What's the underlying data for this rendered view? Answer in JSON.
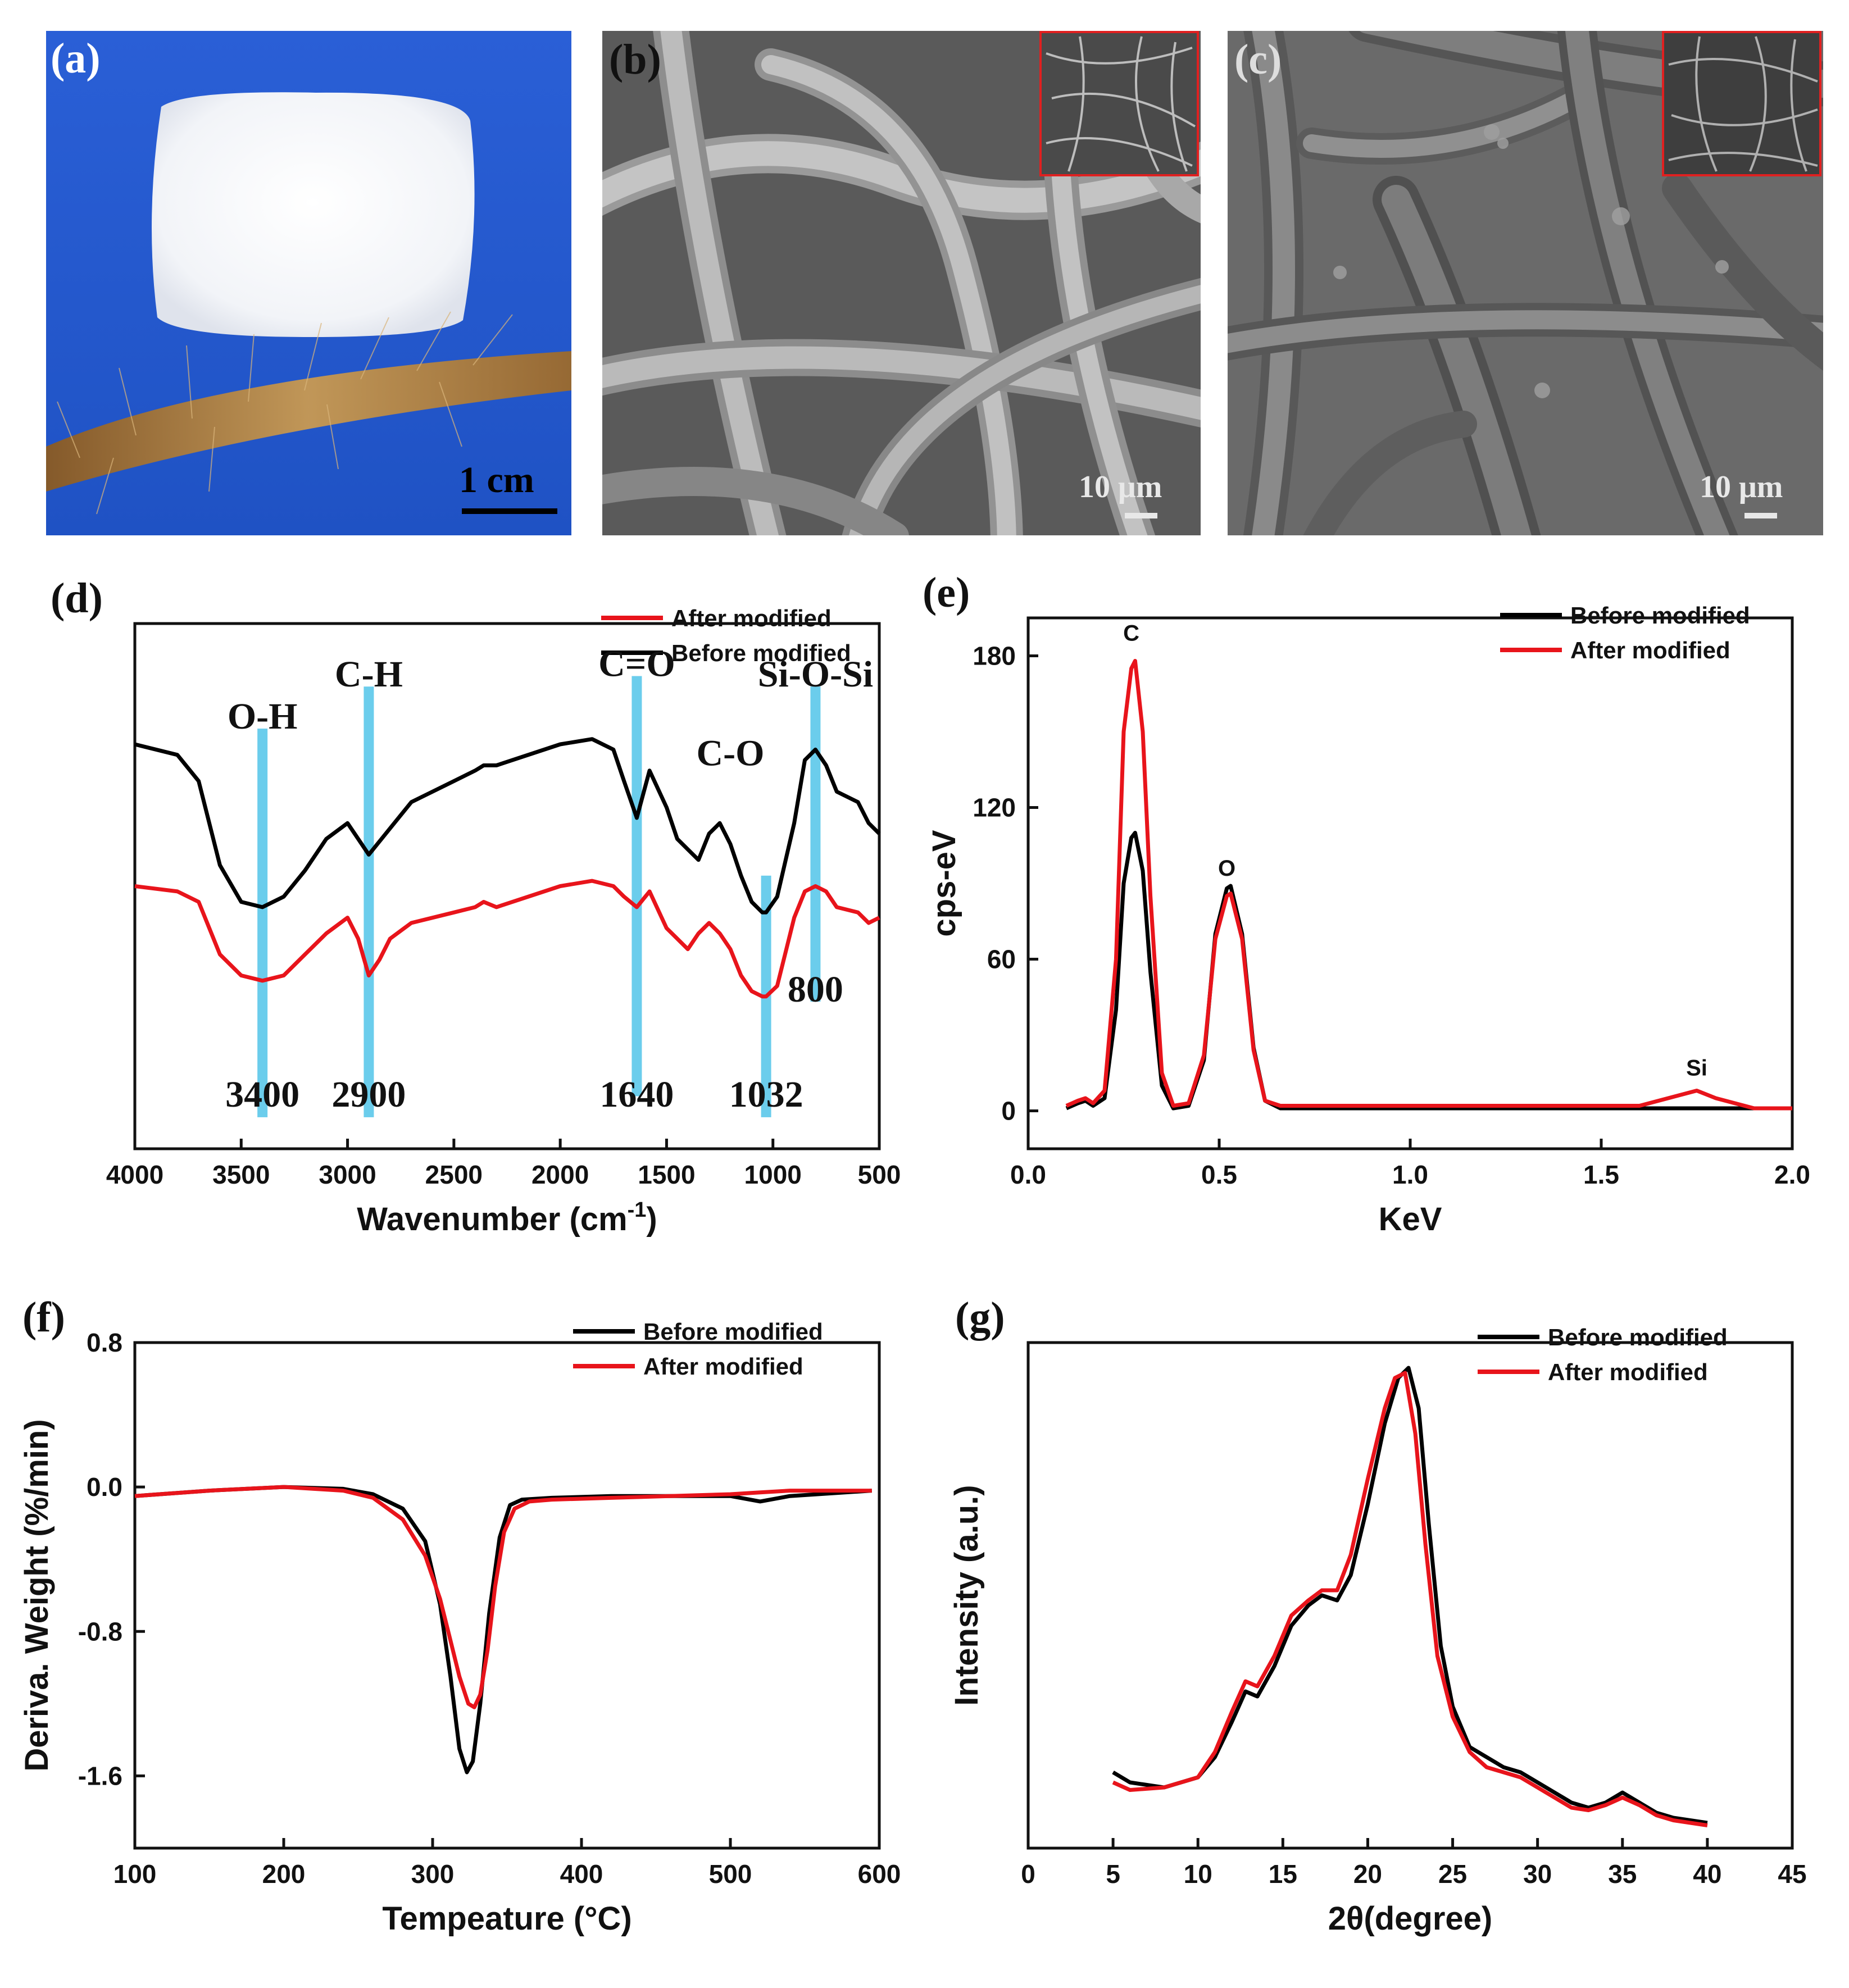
{
  "panels": {
    "a": {
      "label": "(a)",
      "scale_text": "1 cm"
    },
    "b": {
      "label": "(b)",
      "scale_text": "10 μm"
    },
    "c": {
      "label": "(c)",
      "scale_text": "10 μm"
    }
  },
  "colors": {
    "before": "#000000",
    "after": "#e8141b",
    "band": "#5bc8ea",
    "sky": "#2f5fd0"
  },
  "chart_data": [
    {
      "panel": "(d)",
      "type": "line",
      "xlabel": "Wavenumber (cm",
      "xlabel_sup": "-1",
      "xlabel_tail": ")",
      "xlim": [
        4000,
        500
      ],
      "xticks": [
        4000,
        3500,
        3000,
        2500,
        2000,
        1500,
        1000,
        500
      ],
      "xtick_labels": [
        "4000",
        "3500",
        "3000",
        "2500",
        "2000",
        "1500",
        "1000",
        "500"
      ],
      "ylim": [
        0,
        1
      ],
      "legend": [
        "After modified",
        "Before modified"
      ],
      "series": [
        {
          "name": "Before modified",
          "color": "#000000",
          "x": [
            4000,
            3800,
            3700,
            3600,
            3500,
            3400,
            3300,
            3200,
            3100,
            3000,
            2900,
            2800,
            2700,
            2500,
            2400,
            2360,
            2300,
            2000,
            1850,
            1750,
            1700,
            1640,
            1580,
            1500,
            1450,
            1400,
            1350,
            1300,
            1250,
            1200,
            1150,
            1100,
            1050,
            1032,
            980,
            900,
            850,
            800,
            750,
            700,
            600,
            550,
            500
          ],
          "y": [
            0.77,
            0.75,
            0.7,
            0.54,
            0.47,
            0.46,
            0.48,
            0.53,
            0.59,
            0.62,
            0.56,
            0.61,
            0.66,
            0.7,
            0.72,
            0.73,
            0.73,
            0.77,
            0.78,
            0.76,
            0.7,
            0.63,
            0.72,
            0.65,
            0.59,
            0.57,
            0.55,
            0.6,
            0.62,
            0.58,
            0.52,
            0.47,
            0.45,
            0.45,
            0.48,
            0.62,
            0.74,
            0.76,
            0.73,
            0.68,
            0.66,
            0.62,
            0.6
          ]
        },
        {
          "name": "After modified",
          "color": "#e8141b",
          "x": [
            4000,
            3800,
            3700,
            3600,
            3500,
            3400,
            3300,
            3200,
            3100,
            3000,
            2950,
            2900,
            2850,
            2800,
            2700,
            2500,
            2400,
            2360,
            2300,
            2000,
            1850,
            1750,
            1700,
            1640,
            1580,
            1500,
            1450,
            1400,
            1350,
            1300,
            1250,
            1200,
            1150,
            1100,
            1050,
            1032,
            980,
            900,
            850,
            800,
            750,
            700,
            600,
            550,
            500
          ],
          "y": [
            0.5,
            0.49,
            0.47,
            0.37,
            0.33,
            0.32,
            0.33,
            0.37,
            0.41,
            0.44,
            0.4,
            0.33,
            0.36,
            0.4,
            0.43,
            0.45,
            0.46,
            0.47,
            0.46,
            0.5,
            0.51,
            0.5,
            0.48,
            0.46,
            0.49,
            0.42,
            0.4,
            0.38,
            0.41,
            0.43,
            0.41,
            0.38,
            0.33,
            0.3,
            0.29,
            0.29,
            0.31,
            0.44,
            0.49,
            0.5,
            0.49,
            0.46,
            0.45,
            0.43,
            0.44
          ]
        }
      ],
      "annotations": [
        {
          "text": "O-H",
          "x": 3400,
          "y": 0.8
        },
        {
          "text": "C-H",
          "x": 2900,
          "y": 0.88
        },
        {
          "text": "C=O",
          "x": 1640,
          "y": 0.9
        },
        {
          "text": "C-O",
          "x": 1200,
          "y": 0.73
        },
        {
          "text": "Si-O-Si",
          "x": 800,
          "y": 0.88
        },
        {
          "text": "3400",
          "x": 3400,
          "y": 0.08
        },
        {
          "text": "2900",
          "x": 2900,
          "y": 0.08
        },
        {
          "text": "1640",
          "x": 1640,
          "y": 0.08
        },
        {
          "text": "1032",
          "x": 1032,
          "y": 0.08
        },
        {
          "text": "800",
          "x": 800,
          "y": 0.28
        }
      ],
      "bands": [
        3400,
        2900,
        1640,
        1032,
        800
      ]
    },
    {
      "panel": "(e)",
      "type": "line",
      "xlabel": "KeV",
      "ylabel": "cps-eV",
      "xlim": [
        0.0,
        2.0
      ],
      "ylim": [
        -15,
        195
      ],
      "xticks": [
        0.0,
        0.5,
        1.0,
        1.5,
        2.0
      ],
      "xtick_labels": [
        "0.0",
        "0.5",
        "1.0",
        "1.5",
        "2.0"
      ],
      "yticks": [
        0,
        60,
        120,
        180
      ],
      "ytick_labels": [
        "0",
        "60",
        "120",
        "180"
      ],
      "legend": [
        "Before modified",
        "After modified"
      ],
      "series": [
        {
          "name": "Before modified",
          "color": "#000000",
          "x": [
            0.1,
            0.13,
            0.15,
            0.17,
            0.2,
            0.23,
            0.25,
            0.27,
            0.28,
            0.3,
            0.32,
            0.35,
            0.38,
            0.42,
            0.46,
            0.49,
            0.52,
            0.53,
            0.56,
            0.59,
            0.62,
            0.66,
            0.8,
            1.0,
            1.2,
            1.4,
            1.6,
            1.7,
            1.75,
            1.8,
            1.9,
            2.0
          ],
          "y": [
            1,
            3,
            4,
            2,
            5,
            40,
            90,
            108,
            110,
            95,
            55,
            10,
            1,
            2,
            20,
            70,
            88,
            89,
            70,
            25,
            4,
            1,
            1,
            1,
            1,
            1,
            1,
            1,
            1,
            1,
            1,
            1
          ]
        },
        {
          "name": "After modified",
          "color": "#e8141b",
          "x": [
            0.1,
            0.13,
            0.15,
            0.17,
            0.2,
            0.23,
            0.25,
            0.27,
            0.28,
            0.3,
            0.32,
            0.35,
            0.38,
            0.42,
            0.46,
            0.49,
            0.52,
            0.53,
            0.56,
            0.59,
            0.62,
            0.66,
            0.8,
            1.0,
            1.2,
            1.4,
            1.6,
            1.7,
            1.75,
            1.8,
            1.9,
            2.0
          ],
          "y": [
            2,
            4,
            5,
            3,
            8,
            60,
            150,
            175,
            178,
            150,
            85,
            15,
            2,
            3,
            22,
            68,
            85,
            86,
            68,
            24,
            4,
            2,
            2,
            2,
            2,
            2,
            2,
            6,
            8,
            5,
            1,
            1
          ]
        }
      ],
      "element_labels": [
        {
          "text": "C",
          "x": 0.27,
          "y": 186
        },
        {
          "text": "O",
          "x": 0.52,
          "y": 93
        },
        {
          "text": "Si",
          "x": 1.75,
          "y": 14
        }
      ]
    },
    {
      "panel": "(f)",
      "type": "line",
      "xlabel": "Tempeature (°C)",
      "ylabel": "Deriva. Weight (%/min)",
      "xlim": [
        100,
        600
      ],
      "ylim": [
        -2.0,
        0.8
      ],
      "xticks": [
        100,
        200,
        300,
        400,
        500,
        600
      ],
      "xtick_labels": [
        "100",
        "200",
        "300",
        "400",
        "500",
        "600"
      ],
      "yticks": [
        0.8,
        0.0,
        -0.8,
        -1.6
      ],
      "ytick_labels": [
        "0.8",
        "0.0",
        "-0.8",
        "-1.6"
      ],
      "legend": [
        "Before modified",
        "After modified"
      ],
      "series": [
        {
          "name": "Before modified",
          "color": "#000000",
          "x": [
            100,
            150,
            200,
            240,
            260,
            280,
            295,
            305,
            312,
            318,
            323,
            327,
            332,
            338,
            345,
            352,
            360,
            380,
            420,
            500,
            520,
            540,
            595
          ],
          "y": [
            -0.05,
            -0.02,
            0.0,
            -0.01,
            -0.04,
            -0.12,
            -0.3,
            -0.65,
            -1.05,
            -1.45,
            -1.58,
            -1.52,
            -1.2,
            -0.7,
            -0.28,
            -0.1,
            -0.07,
            -0.06,
            -0.05,
            -0.05,
            -0.08,
            -0.05,
            -0.02
          ]
        },
        {
          "name": "After modified",
          "color": "#e8141b",
          "x": [
            100,
            150,
            200,
            240,
            260,
            280,
            295,
            305,
            312,
            318,
            324,
            328,
            332,
            337,
            342,
            348,
            355,
            365,
            380,
            420,
            500,
            520,
            540,
            595
          ],
          "y": [
            -0.05,
            -0.02,
            0.0,
            -0.02,
            -0.06,
            -0.18,
            -0.38,
            -0.62,
            -0.85,
            -1.05,
            -1.2,
            -1.22,
            -1.15,
            -0.9,
            -0.55,
            -0.25,
            -0.12,
            -0.08,
            -0.07,
            -0.06,
            -0.04,
            -0.03,
            -0.02,
            -0.02
          ]
        }
      ]
    },
    {
      "panel": "(g)",
      "type": "line",
      "xlabel": "2θ(degree)",
      "ylabel": "Intensity (a.u.)",
      "xlim": [
        0,
        45
      ],
      "ylim": [
        0,
        1
      ],
      "xticks": [
        0,
        5,
        10,
        15,
        20,
        25,
        30,
        35,
        40,
        45
      ],
      "xtick_labels": [
        "0",
        "5",
        "10",
        "15",
        "20",
        "25",
        "30",
        "35",
        "40",
        "45"
      ],
      "legend": [
        "Before modified",
        "After modified"
      ],
      "series": [
        {
          "name": "Before modified",
          "color": "#000000",
          "x": [
            5,
            6,
            8,
            10,
            11,
            12,
            12.8,
            13.5,
            14.5,
            15.5,
            16.5,
            17.3,
            18.2,
            19,
            20,
            21,
            21.8,
            22.4,
            23,
            23.6,
            24.3,
            25,
            26,
            27,
            28,
            29,
            30,
            31,
            32,
            33,
            34,
            35,
            36,
            37,
            38,
            40
          ],
          "y": [
            0.15,
            0.13,
            0.12,
            0.14,
            0.18,
            0.25,
            0.31,
            0.3,
            0.36,
            0.44,
            0.48,
            0.5,
            0.49,
            0.54,
            0.68,
            0.84,
            0.93,
            0.95,
            0.87,
            0.64,
            0.4,
            0.28,
            0.2,
            0.18,
            0.16,
            0.15,
            0.13,
            0.11,
            0.09,
            0.08,
            0.09,
            0.11,
            0.09,
            0.07,
            0.06,
            0.05
          ]
        },
        {
          "name": "After modified",
          "color": "#e8141b",
          "x": [
            5,
            6,
            8,
            10,
            11,
            12,
            12.8,
            13.5,
            14.5,
            15.5,
            16.5,
            17.3,
            18.2,
            19,
            20,
            21,
            21.6,
            22.2,
            22.8,
            23.4,
            24.1,
            25,
            26,
            27,
            28,
            29,
            30,
            31,
            32,
            33,
            34,
            35,
            36,
            37,
            38,
            40
          ],
          "y": [
            0.13,
            0.115,
            0.12,
            0.14,
            0.19,
            0.27,
            0.33,
            0.32,
            0.38,
            0.46,
            0.49,
            0.51,
            0.51,
            0.58,
            0.73,
            0.87,
            0.93,
            0.94,
            0.82,
            0.6,
            0.38,
            0.26,
            0.19,
            0.16,
            0.15,
            0.14,
            0.12,
            0.1,
            0.08,
            0.075,
            0.085,
            0.1,
            0.085,
            0.065,
            0.055,
            0.045
          ]
        }
      ]
    }
  ]
}
